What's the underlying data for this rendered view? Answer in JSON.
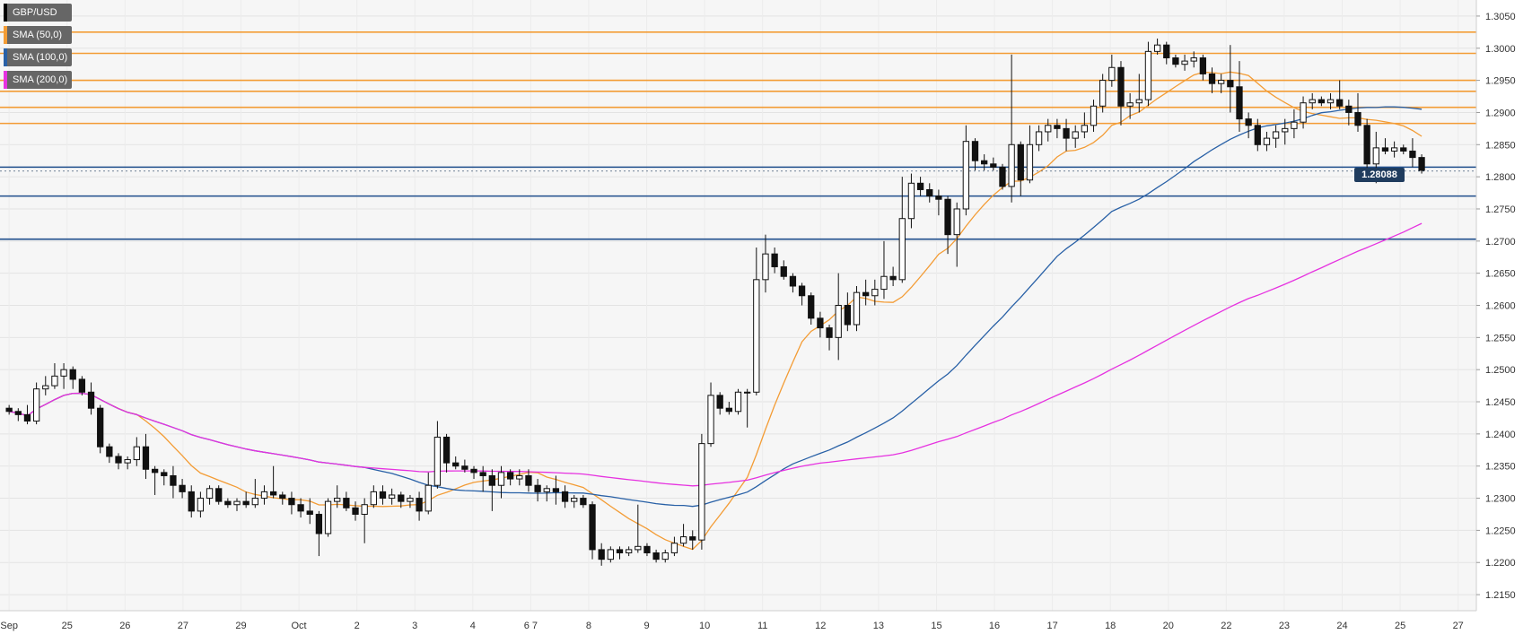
{
  "chart_data": {
    "type": "candlestick",
    "symbol": "GBP/USD",
    "ylim": [
      1.2125,
      1.3075
    ],
    "y_ticks": [
      "1.3050",
      "1.3000",
      "1.2950",
      "1.2900",
      "1.2850",
      "1.2800",
      "1.2750",
      "1.2700",
      "1.2650",
      "1.2600",
      "1.2550",
      "1.2500",
      "1.2450",
      "1.2400",
      "1.2350",
      "1.2300",
      "1.2250",
      "1.2200",
      "1.2150"
    ],
    "x_ticks": [
      "Sep",
      "25",
      "26",
      "27",
      "29",
      "Oct",
      "2",
      "3",
      "4",
      "6 7",
      "8",
      "9",
      "10",
      "11",
      "12",
      "13",
      "15",
      "16",
      "17",
      "18",
      "20",
      "22",
      "23",
      "24",
      "25",
      "27"
    ],
    "last_price": "1.28088",
    "grid": true,
    "legend_position": "top-left",
    "indicators": [
      {
        "name": "GBP/USD",
        "color": "#000000"
      },
      {
        "name": "SMA (50,0)",
        "color": "#f39c35"
      },
      {
        "name": "SMA (100,0)",
        "color": "#2860a6"
      },
      {
        "name": "SMA (200,0)",
        "color": "#e632e0"
      }
    ],
    "resistance_levels": [
      1.3025,
      1.2992,
      1.295,
      1.2933,
      1.2908,
      1.2883
    ],
    "support_levels": [
      1.2815,
      1.277,
      1.2703
    ],
    "candles": [
      [
        1.244,
        1.2445,
        1.243,
        1.2435
      ],
      [
        1.2435,
        1.244,
        1.242,
        1.243
      ],
      [
        1.243,
        1.2445,
        1.2415,
        1.242
      ],
      [
        1.242,
        1.248,
        1.2415,
        1.247
      ],
      [
        1.247,
        1.249,
        1.246,
        1.2475
      ],
      [
        1.2475,
        1.251,
        1.247,
        1.249
      ],
      [
        1.249,
        1.251,
        1.247,
        1.25
      ],
      [
        1.25,
        1.2505,
        1.247,
        1.2485
      ],
      [
        1.2485,
        1.249,
        1.246,
        1.2465
      ],
      [
        1.2465,
        1.248,
        1.243,
        1.244
      ],
      [
        1.244,
        1.2445,
        1.237,
        1.238
      ],
      [
        1.238,
        1.2385,
        1.2355,
        1.2365
      ],
      [
        1.2365,
        1.237,
        1.2345,
        1.2355
      ],
      [
        1.2355,
        1.2365,
        1.2345,
        1.236
      ],
      [
        1.236,
        1.2395,
        1.235,
        1.238
      ],
      [
        1.238,
        1.24,
        1.233,
        1.2345
      ],
      [
        1.2345,
        1.235,
        1.2305,
        1.234
      ],
      [
        1.234,
        1.2345,
        1.232,
        1.2335
      ],
      [
        1.2335,
        1.235,
        1.23,
        1.232
      ],
      [
        1.232,
        1.233,
        1.23,
        1.231
      ],
      [
        1.231,
        1.232,
        1.227,
        1.228
      ],
      [
        1.228,
        1.231,
        1.227,
        1.23
      ],
      [
        1.23,
        1.232,
        1.229,
        1.2315
      ],
      [
        1.2315,
        1.232,
        1.229,
        1.2295
      ],
      [
        1.2295,
        1.23,
        1.2285,
        1.229
      ],
      [
        1.229,
        1.23,
        1.228,
        1.2295
      ],
      [
        1.2295,
        1.231,
        1.2285,
        1.229
      ],
      [
        1.229,
        1.233,
        1.2285,
        1.23
      ],
      [
        1.23,
        1.232,
        1.229,
        1.231
      ],
      [
        1.231,
        1.235,
        1.23,
        1.2305
      ],
      [
        1.2305,
        1.231,
        1.229,
        1.23
      ],
      [
        1.23,
        1.231,
        1.2275,
        1.229
      ],
      [
        1.229,
        1.23,
        1.227,
        1.228
      ],
      [
        1.228,
        1.23,
        1.226,
        1.2275
      ],
      [
        1.2275,
        1.228,
        1.221,
        1.2245
      ],
      [
        1.2245,
        1.23,
        1.224,
        1.2295
      ],
      [
        1.2295,
        1.232,
        1.2285,
        1.23
      ],
      [
        1.23,
        1.231,
        1.228,
        1.2285
      ],
      [
        1.2285,
        1.2295,
        1.2265,
        1.2275
      ],
      [
        1.2275,
        1.23,
        1.223,
        1.229
      ],
      [
        1.229,
        1.232,
        1.2285,
        1.231
      ],
      [
        1.231,
        1.232,
        1.229,
        1.23
      ],
      [
        1.23,
        1.2315,
        1.229,
        1.2305
      ],
      [
        1.2305,
        1.231,
        1.2285,
        1.2295
      ],
      [
        1.2295,
        1.2305,
        1.2285,
        1.23
      ],
      [
        1.23,
        1.231,
        1.2265,
        1.228
      ],
      [
        1.228,
        1.234,
        1.2275,
        1.232
      ],
      [
        1.232,
        1.242,
        1.2315,
        1.2395
      ],
      [
        1.2395,
        1.24,
        1.234,
        1.2355
      ],
      [
        1.2355,
        1.2365,
        1.2345,
        1.235
      ],
      [
        1.235,
        1.236,
        1.234,
        1.2345
      ],
      [
        1.2345,
        1.235,
        1.233,
        1.234
      ],
      [
        1.234,
        1.235,
        1.231,
        1.2335
      ],
      [
        1.2335,
        1.2345,
        1.228,
        1.232
      ],
      [
        1.232,
        1.235,
        1.23,
        1.234
      ],
      [
        1.234,
        1.2345,
        1.232,
        1.233
      ],
      [
        1.233,
        1.2345,
        1.232,
        1.2335
      ],
      [
        1.2335,
        1.2345,
        1.231,
        1.232
      ],
      [
        1.232,
        1.233,
        1.2295,
        1.231
      ],
      [
        1.231,
        1.232,
        1.2295,
        1.2315
      ],
      [
        1.2315,
        1.2335,
        1.229,
        1.231
      ],
      [
        1.231,
        1.232,
        1.2285,
        1.2295
      ],
      [
        1.2295,
        1.2305,
        1.2285,
        1.23
      ],
      [
        1.23,
        1.2305,
        1.2285,
        1.229
      ],
      [
        1.229,
        1.2295,
        1.2205,
        1.222
      ],
      [
        1.222,
        1.223,
        1.2195,
        1.2205
      ],
      [
        1.2205,
        1.2225,
        1.22,
        1.222
      ],
      [
        1.222,
        1.2225,
        1.2205,
        1.2215
      ],
      [
        1.2215,
        1.2225,
        1.221,
        1.222
      ],
      [
        1.222,
        1.229,
        1.2215,
        1.2225
      ],
      [
        1.2225,
        1.223,
        1.221,
        1.2215
      ],
      [
        1.2215,
        1.222,
        1.22,
        1.2205
      ],
      [
        1.2205,
        1.222,
        1.22,
        1.2215
      ],
      [
        1.2215,
        1.224,
        1.221,
        1.223
      ],
      [
        1.223,
        1.226,
        1.2225,
        1.224
      ],
      [
        1.224,
        1.225,
        1.222,
        1.2235
      ],
      [
        1.2235,
        1.24,
        1.222,
        1.2385
      ],
      [
        1.2385,
        1.248,
        1.238,
        1.246
      ],
      [
        1.246,
        1.2465,
        1.243,
        1.244
      ],
      [
        1.244,
        1.245,
        1.243,
        1.2435
      ],
      [
        1.2435,
        1.247,
        1.243,
        1.2465
      ],
      [
        1.2465,
        1.247,
        1.241,
        1.2465
      ],
      [
        1.2465,
        1.269,
        1.246,
        1.264
      ],
      [
        1.264,
        1.271,
        1.262,
        1.268
      ],
      [
        1.268,
        1.269,
        1.265,
        1.266
      ],
      [
        1.266,
        1.267,
        1.264,
        1.2645
      ],
      [
        1.2645,
        1.265,
        1.262,
        1.263
      ],
      [
        1.263,
        1.2635,
        1.26,
        1.2615
      ],
      [
        1.2615,
        1.262,
        1.257,
        1.258
      ],
      [
        1.258,
        1.259,
        1.255,
        1.2565
      ],
      [
        1.2565,
        1.257,
        1.253,
        1.255
      ],
      [
        1.255,
        1.265,
        1.2515,
        1.26
      ],
      [
        1.26,
        1.262,
        1.256,
        1.257
      ],
      [
        1.257,
        1.263,
        1.256,
        1.262
      ],
      [
        1.262,
        1.264,
        1.26,
        1.2615
      ],
      [
        1.2615,
        1.264,
        1.26,
        1.2625
      ],
      [
        1.2625,
        1.27,
        1.261,
        1.2645
      ],
      [
        1.2645,
        1.266,
        1.263,
        1.264
      ],
      [
        1.264,
        1.28,
        1.2635,
        1.2735
      ],
      [
        1.2735,
        1.2805,
        1.272,
        1.279
      ],
      [
        1.279,
        1.28,
        1.277,
        1.278
      ],
      [
        1.278,
        1.279,
        1.276,
        1.277
      ],
      [
        1.277,
        1.278,
        1.274,
        1.2765
      ],
      [
        1.2765,
        1.277,
        1.268,
        1.271
      ],
      [
        1.271,
        1.276,
        1.266,
        1.275
      ],
      [
        1.275,
        1.288,
        1.274,
        1.2855
      ],
      [
        1.2855,
        1.286,
        1.281,
        1.2825
      ],
      [
        1.2825,
        1.2835,
        1.281,
        1.282
      ],
      [
        1.282,
        1.283,
        1.281,
        1.2815
      ],
      [
        1.2815,
        1.282,
        1.278,
        1.2785
      ],
      [
        1.2785,
        1.299,
        1.276,
        1.285
      ],
      [
        1.285,
        1.2855,
        1.277,
        1.2795
      ],
      [
        1.2795,
        1.288,
        1.279,
        1.285
      ],
      [
        1.285,
        1.288,
        1.284,
        1.287
      ],
      [
        1.287,
        1.289,
        1.2855,
        1.288
      ],
      [
        1.288,
        1.289,
        1.286,
        1.2875
      ],
      [
        1.2875,
        1.289,
        1.284,
        1.286
      ],
      [
        1.286,
        1.288,
        1.2845,
        1.287
      ],
      [
        1.287,
        1.29,
        1.286,
        1.288
      ],
      [
        1.288,
        1.292,
        1.287,
        1.291
      ],
      [
        1.291,
        1.296,
        1.29,
        1.295
      ],
      [
        1.295,
        1.299,
        1.294,
        1.297
      ],
      [
        1.297,
        1.298,
        1.288,
        1.291
      ],
      [
        1.291,
        1.293,
        1.289,
        1.2915
      ],
      [
        1.2915,
        1.296,
        1.29,
        1.292
      ],
      [
        1.292,
        1.301,
        1.291,
        1.2995
      ],
      [
        1.2995,
        1.3015,
        1.299,
        1.3005
      ],
      [
        1.3005,
        1.301,
        1.2975,
        1.2985
      ],
      [
        1.2985,
        1.299,
        1.297,
        1.2975
      ],
      [
        1.2975,
        1.299,
        1.2965,
        1.298
      ],
      [
        1.298,
        1.2995,
        1.297,
        1.2985
      ],
      [
        1.2985,
        1.299,
        1.295,
        1.296
      ],
      [
        1.296,
        1.297,
        1.293,
        1.2945
      ],
      [
        1.2945,
        1.296,
        1.293,
        1.295
      ],
      [
        1.295,
        1.3005,
        1.29,
        1.294
      ],
      [
        1.294,
        1.298,
        1.287,
        1.289
      ],
      [
        1.289,
        1.29,
        1.286,
        1.288
      ],
      [
        1.288,
        1.289,
        1.284,
        1.285
      ],
      [
        1.285,
        1.287,
        1.284,
        1.286
      ],
      [
        1.286,
        1.288,
        1.2845,
        1.287
      ],
      [
        1.287,
        1.289,
        1.285,
        1.2875
      ],
      [
        1.2875,
        1.2905,
        1.286,
        1.2885
      ],
      [
        1.2885,
        1.2925,
        1.2875,
        1.2915
      ],
      [
        1.2915,
        1.293,
        1.2905,
        1.292
      ],
      [
        1.292,
        1.2925,
        1.291,
        1.2915
      ],
      [
        1.2915,
        1.293,
        1.2905,
        1.292
      ],
      [
        1.292,
        1.295,
        1.2905,
        1.291
      ],
      [
        1.291,
        1.292,
        1.288,
        1.29
      ],
      [
        1.29,
        1.293,
        1.287,
        1.288
      ],
      [
        1.288,
        1.289,
        1.281,
        1.282
      ],
      [
        1.282,
        1.287,
        1.279,
        1.2845
      ],
      [
        1.2845,
        1.286,
        1.2835,
        1.284
      ],
      [
        1.284,
        1.2855,
        1.283,
        1.2845
      ],
      [
        1.2845,
        1.285,
        1.2835,
        1.284
      ],
      [
        1.284,
        1.286,
        1.2815,
        1.283
      ],
      [
        1.283,
        1.2835,
        1.2805,
        1.281
      ]
    ]
  }
}
